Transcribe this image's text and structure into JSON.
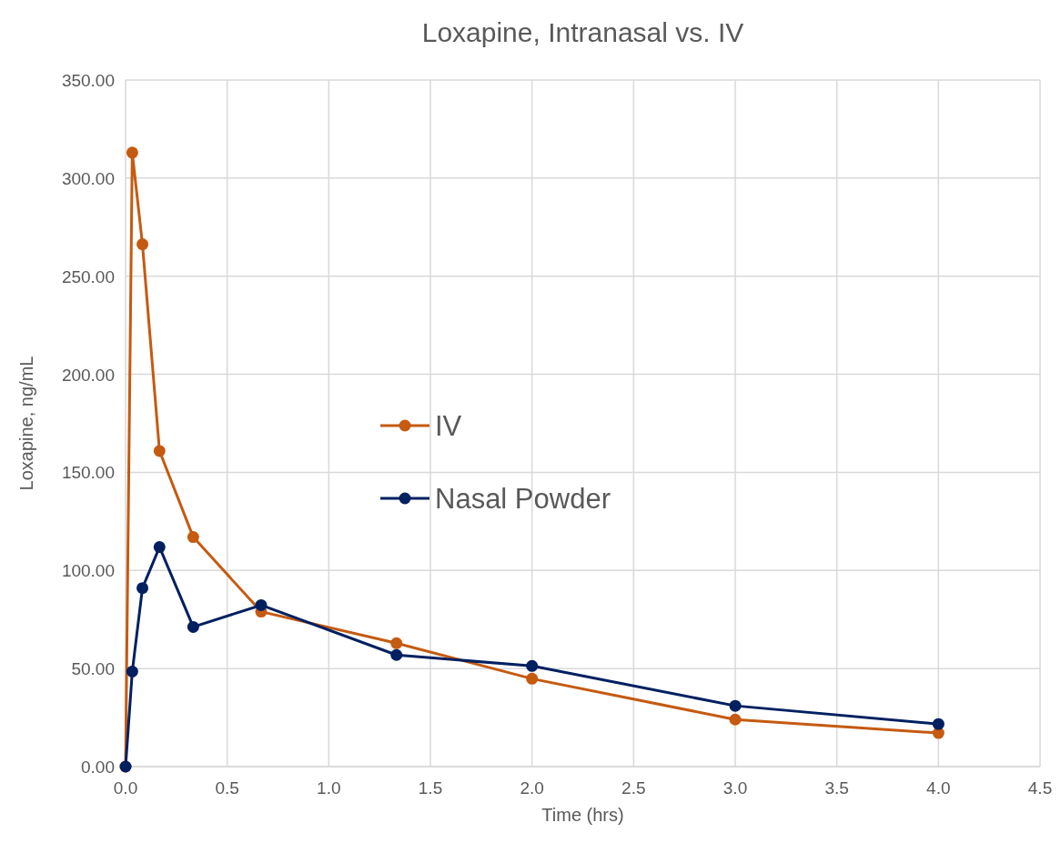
{
  "chart_data": {
    "type": "line",
    "title": "Loxapine, Intranasal vs. IV",
    "xlabel": "Time  (hrs)",
    "ylabel": "Loxapine, ng/mL",
    "x": [
      0,
      0.033,
      0.083,
      0.167,
      0.333,
      0.667,
      1.333,
      2,
      3,
      4
    ],
    "series": [
      {
        "name": "IV",
        "color": "#c55a11",
        "values": [
          0,
          313,
          266.3,
          160.9,
          117,
          79,
          62.9,
          44.8,
          24,
          17.1
        ]
      },
      {
        "name": "Nasal Powder",
        "color": "#002060",
        "values": [
          0,
          48.5,
          91,
          111.9,
          71.2,
          82.3,
          56.9,
          51.3,
          31,
          21.7
        ]
      }
    ],
    "xlim": [
      0,
      4.5
    ],
    "xticks": [
      {
        "value": 0,
        "label": "0.0"
      },
      {
        "value": 0.5,
        "label": "0.5"
      },
      {
        "value": 1,
        "label": "1.0"
      },
      {
        "value": 1.5,
        "label": "1.5"
      },
      {
        "value": 2,
        "label": "2.0"
      },
      {
        "value": 2.5,
        "label": "2.5"
      },
      {
        "value": 3,
        "label": "3.0"
      },
      {
        "value": 3.5,
        "label": "3.5"
      },
      {
        "value": 4,
        "label": "4.0"
      },
      {
        "value": 4.5,
        "label": "4.5"
      }
    ],
    "ylim": [
      0,
      350
    ],
    "yticks": [
      {
        "value": 0,
        "label": "0.00"
      },
      {
        "value": 50,
        "label": "50.00"
      },
      {
        "value": 100,
        "label": "100.00"
      },
      {
        "value": 150,
        "label": "150.00"
      },
      {
        "value": 200,
        "label": "200.00"
      },
      {
        "value": 250,
        "label": "250.00"
      },
      {
        "value": 300,
        "label": "300.00"
      },
      {
        "value": 350,
        "label": "350.00"
      }
    ],
    "grid": true,
    "legend": "center",
    "marker": "circle",
    "line_style": "solid"
  }
}
